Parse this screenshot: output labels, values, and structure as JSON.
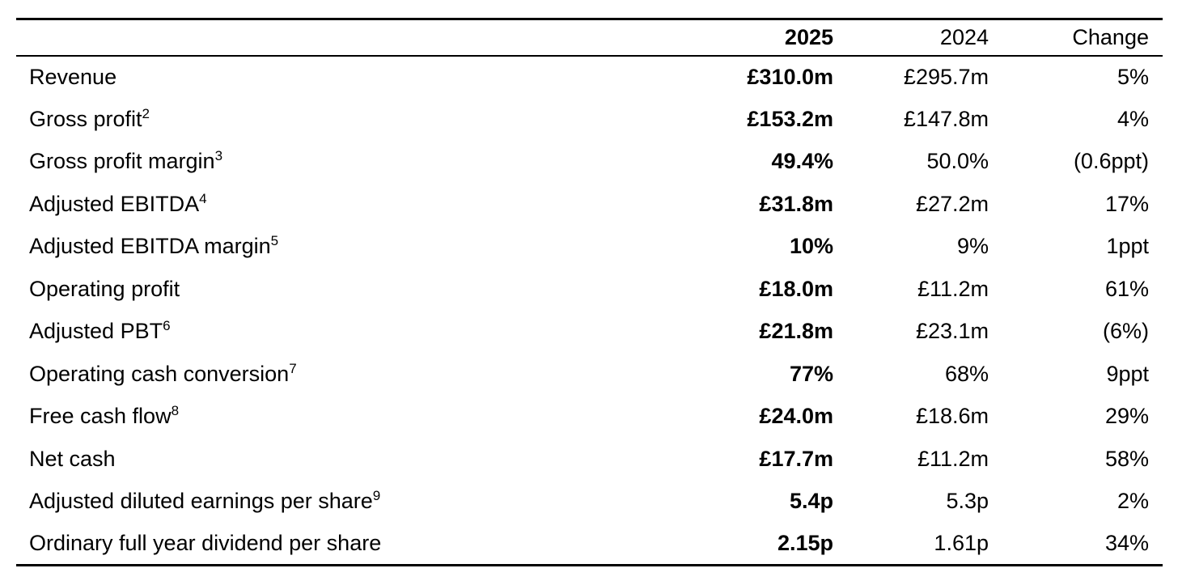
{
  "colors": {
    "background": "#ffffff",
    "text": "#000000",
    "rule": "#000000"
  },
  "table": {
    "headers": {
      "metric": "",
      "year_current": "2025",
      "year_prior": "2024",
      "change": "Change"
    },
    "rows": [
      {
        "label": "Revenue",
        "sup": "",
        "current": "£310.0m",
        "prior": "£295.7m",
        "change": "5%"
      },
      {
        "label": "Gross profit",
        "sup": "2",
        "current": "£153.2m",
        "prior": "£147.8m",
        "change": "4%"
      },
      {
        "label": "Gross profit margin",
        "sup": "3",
        "current": "49.4%",
        "prior": "50.0%",
        "change": "(0.6ppt)"
      },
      {
        "label": "Adjusted EBITDA",
        "sup": "4",
        "current": "£31.8m",
        "prior": "£27.2m",
        "change": "17%"
      },
      {
        "label": "Adjusted EBITDA margin",
        "sup": "5",
        "current": "10%",
        "prior": "9%",
        "change": "1ppt"
      },
      {
        "label": "Operating profit",
        "sup": "",
        "current": "£18.0m",
        "prior": "£11.2m",
        "change": "61%"
      },
      {
        "label": "Adjusted PBT",
        "sup": "6",
        "current": "£21.8m",
        "prior": "£23.1m",
        "change": "(6%)"
      },
      {
        "label": "Operating cash conversion",
        "sup": "7",
        "current": "77%",
        "prior": "68%",
        "change": "9ppt"
      },
      {
        "label": "Free cash flow",
        "sup": "8",
        "current": "£24.0m",
        "prior": "£18.6m",
        "change": "29%"
      },
      {
        "label": "Net cash",
        "sup": "",
        "current": "£17.7m",
        "prior": "£11.2m",
        "change": "58%"
      },
      {
        "label": "Adjusted diluted earnings per share",
        "sup": "9",
        "current": "5.4p",
        "prior": "5.3p",
        "change": "2%"
      },
      {
        "label": "Ordinary full year dividend per share",
        "sup": "",
        "current": "2.15p",
        "prior": "1.61p",
        "change": "34%"
      }
    ]
  }
}
